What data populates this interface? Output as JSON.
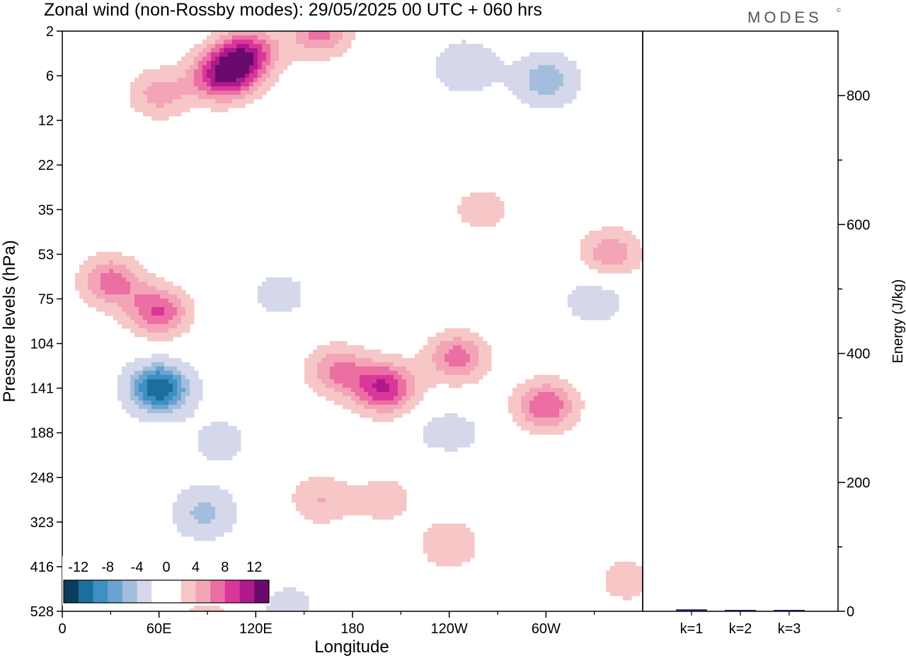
{
  "title": "Zonal wind (non-Rossby modes):  29/05/2025  00 UTC  + 060 hrs",
  "brand": "MODES",
  "brand_mark": "©",
  "colors": {
    "neg": [
      "#0b3c5a",
      "#1c6e9c",
      "#3d8fc4",
      "#6aa3cf",
      "#a3bedc",
      "#d5d8ea"
    ],
    "pos": [
      "#f6c7c6",
      "#f3a5b7",
      "#eb6fa3",
      "#d9379a",
      "#b0198a",
      "#6a0a6e"
    ]
  },
  "chart_data": [
    {
      "type": "heatmap",
      "title": "",
      "xlabel": "Longitude",
      "ylabel": "Pressure levels (hPa)",
      "x_ticks": [
        "0",
        "60E",
        "120E",
        "180",
        "120W",
        "60W"
      ],
      "x_tick_degrees": [
        0,
        60,
        120,
        180,
        240,
        300
      ],
      "x_range": [
        0,
        360
      ],
      "y_ticks": [
        "2",
        "6",
        "12",
        "22",
        "35",
        "53",
        "75",
        "104",
        "141",
        "188",
        "248",
        "323",
        "416",
        "528"
      ],
      "colorbar": {
        "labels": [
          "-12",
          "-8",
          "-4",
          "0",
          "4",
          "8",
          "12"
        ],
        "levels": [
          -14,
          -12,
          -10,
          -8,
          -6,
          -4,
          -2,
          2,
          4,
          6,
          8,
          10,
          12,
          14
        ]
      },
      "features": [
        {
          "lon": 60,
          "level": 8.0,
          "value": -14
        },
        {
          "lon": 88,
          "level": 10.8,
          "value": -7
        },
        {
          "lon": 98,
          "level": 9.2,
          "value": -4
        },
        {
          "lon": 100,
          "level": 1.0,
          "value": 12
        },
        {
          "lon": 115,
          "level": 0.5,
          "value": 10
        },
        {
          "lon": 160,
          "level": 0.0,
          "value": 8
        },
        {
          "lon": 60,
          "level": 1.4,
          "value": 6
        },
        {
          "lon": 60,
          "level": 6.3,
          "value": 9
        },
        {
          "lon": 30,
          "level": 5.6,
          "value": 8
        },
        {
          "lon": 200,
          "level": 8.0,
          "value": 11
        },
        {
          "lon": 170,
          "level": 7.6,
          "value": 7
        },
        {
          "lon": 245,
          "level": 7.3,
          "value": 8
        },
        {
          "lon": 240,
          "level": 9.5,
          "value": 6
        },
        {
          "lon": 300,
          "level": 8.4,
          "value": 9
        },
        {
          "lon": 200,
          "level": 10.5,
          "value": 4
        },
        {
          "lon": 160,
          "level": 10.5,
          "value": 5
        },
        {
          "lon": 240,
          "level": 11.5,
          "value": 5
        },
        {
          "lon": 240,
          "level": 9.2,
          "value": -9
        },
        {
          "lon": 300,
          "level": 1.1,
          "value": -8
        },
        {
          "lon": 250,
          "level": 0.8,
          "value": -6
        },
        {
          "lon": 330,
          "level": 6.0,
          "value": -5
        },
        {
          "lon": 340,
          "level": 5.0,
          "value": 7
        },
        {
          "lon": 135,
          "level": 5.9,
          "value": -4
        },
        {
          "lon": 260,
          "level": 4.0,
          "value": 4
        },
        {
          "lon": 90,
          "level": 13.2,
          "value": 4
        },
        {
          "lon": 140,
          "level": 12.9,
          "value": -4
        },
        {
          "lon": 350,
          "level": 12.3,
          "value": 4
        }
      ]
    },
    {
      "type": "bar",
      "title": "",
      "xlabel": "",
      "ylabel": "Energy (J/kg)",
      "categories": [
        "k=1",
        "k=2",
        "k=3"
      ],
      "values": [
        3,
        2,
        1
      ],
      "ylim": [
        0,
        900
      ],
      "y_ticks": [
        "0",
        "200",
        "400",
        "600",
        "800"
      ],
      "bar_color": "#1b1b5e"
    }
  ]
}
